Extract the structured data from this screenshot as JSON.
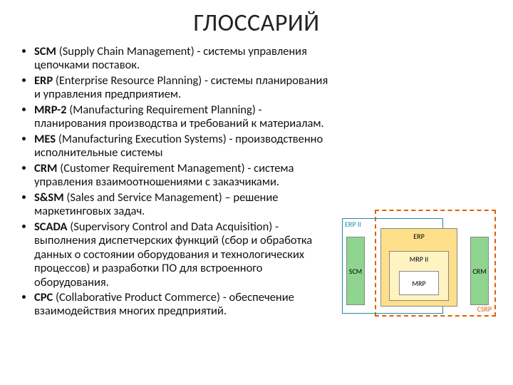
{
  "title": "ГЛОССАРИЙ",
  "items": [
    {
      "term": "SCM",
      "full": "(Supply Chain Management)",
      "desc": " - системы управления цепочками поставок."
    },
    {
      "term": "ERP",
      "full": "(Enterprise Resource Planning)",
      "desc": " - системы планирования и управления предприятием."
    },
    {
      "term": "MRP-2",
      "full": "(Manufacturing Requirement Planning)",
      "desc": " - планирования производства и требований к материалам."
    },
    {
      "term": "MES",
      "full": "(Manufacturing Execution Systems)",
      "desc": " - производственно исполнительные системы"
    },
    {
      "term": "CRM",
      "full": "(Customer Requirement Management)",
      "desc": " - система управления взаимоотношениями с заказчиками."
    },
    {
      "term": "S&SM",
      "full": "(Sales and Service Management)",
      "desc": " – решение маркетинговых задач."
    },
    {
      "term": "SCADA",
      "full": "(Supervisory Control and Data Acquisition)",
      "desc": " - выполнения диспетчерских функций (сбор и обработка данных о состоянии оборудования и технологических процессов) и разработки ПО для встроенного оборудования."
    },
    {
      "term": "CPC",
      "full": "(Collaborative Product Commerce)",
      "desc": " - обеспечение взаимодействия многих предприятий."
    }
  ],
  "diagram": {
    "csrp": "CSRP",
    "erp2": "ERP II",
    "scm": "SCM",
    "crm": "CRM",
    "erp": "ERP",
    "mrp2": "MRP II",
    "mrp": "MRP",
    "colors": {
      "csrp_border": "#e06000",
      "erp2_border": "#2288aa",
      "green_fill": "#8fd58f",
      "erp_fill": "#ffe08a",
      "mrp2_fill": "#fff3c2",
      "mrp_fill": "#ffffff"
    }
  }
}
